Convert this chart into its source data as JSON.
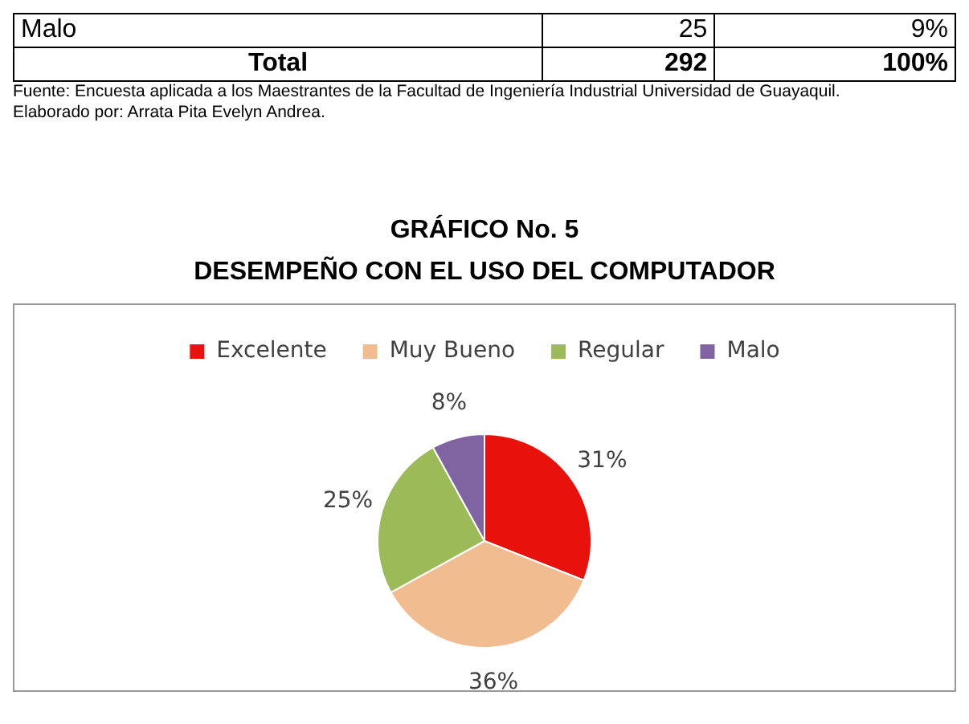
{
  "chart_data": {
    "type": "pie",
    "title": "GRÁFICO No. 5",
    "subtitle": "DESEMPEÑO CON EL USO DEL COMPUTADOR",
    "categories": [
      "Excelente",
      "Muy Bueno",
      "Regular",
      "Malo"
    ],
    "values": [
      31,
      36,
      25,
      8
    ],
    "value_labels": [
      "31%",
      "36%",
      "25%",
      "8%"
    ],
    "colors": [
      "#e8120c",
      "#f2bc91",
      "#9bbb59",
      "#8064a2"
    ],
    "legend": "top",
    "annotations": [
      "Malo",
      "25",
      "9%",
      "Total",
      "292",
      "100%",
      "Fuente: Encuesta aplicada a los Maestrantes de la Facultad de Ingeniería Industrial Universidad de Guayaquil.",
      "Elaborado por: Arrata Pita Evelyn Andrea."
    ]
  }
}
